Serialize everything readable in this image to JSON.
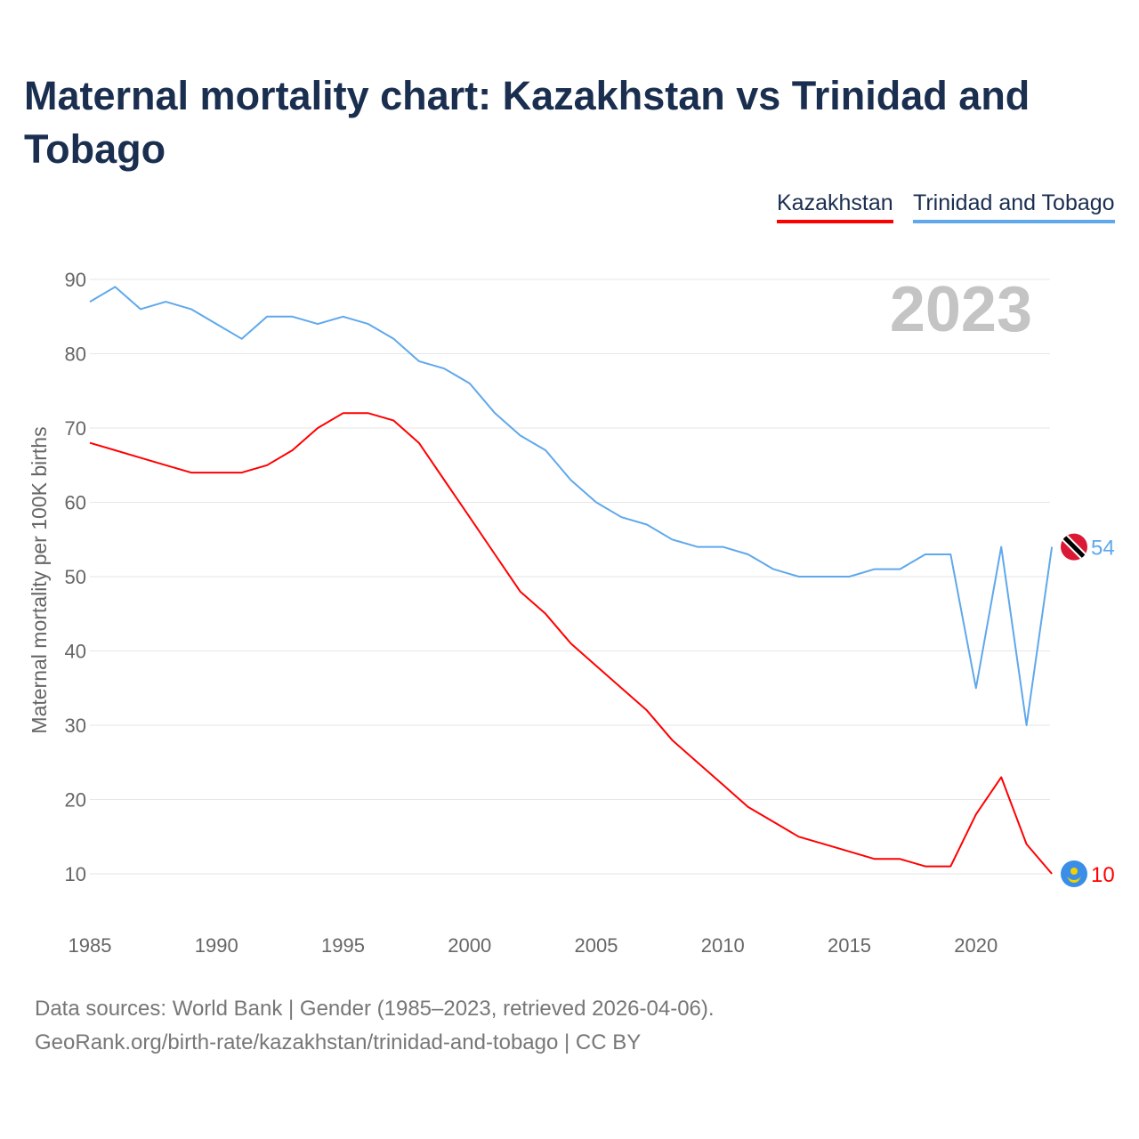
{
  "chart_data": {
    "type": "line",
    "title": "Maternal mortality chart: Kazakhstan vs Trinidad and Tobago",
    "ylabel": "Maternal mortality per 100K births",
    "xlabel": "",
    "ylim": [
      5,
      95
    ],
    "xlim": [
      1985,
      2023
    ],
    "yticks": [
      10,
      20,
      30,
      40,
      50,
      60,
      70,
      80,
      90
    ],
    "xticks": [
      1985,
      1990,
      1995,
      2000,
      2005,
      2010,
      2015,
      2020
    ],
    "grid": true,
    "legend_position": "top-right",
    "year_label": "2023",
    "x": [
      1985,
      1986,
      1987,
      1988,
      1989,
      1990,
      1991,
      1992,
      1993,
      1994,
      1995,
      1996,
      1997,
      1998,
      1999,
      2000,
      2001,
      2002,
      2003,
      2004,
      2005,
      2006,
      2007,
      2008,
      2009,
      2010,
      2011,
      2012,
      2013,
      2014,
      2015,
      2016,
      2017,
      2018,
      2019,
      2020,
      2021,
      2022,
      2023
    ],
    "series": [
      {
        "name": "Kazakhstan",
        "color": "#ff0000",
        "end_label": "10",
        "values": [
          68,
          67,
          66,
          65,
          64,
          64,
          64,
          65,
          67,
          70,
          72,
          72,
          71,
          68,
          63,
          58,
          53,
          48,
          45,
          41,
          38,
          35,
          32,
          28,
          25,
          22,
          19,
          17,
          15,
          14,
          13,
          12,
          12,
          11,
          11,
          18,
          23,
          14,
          10
        ]
      },
      {
        "name": "Trinidad and Tobago",
        "color": "#5fa8ec",
        "end_label": "54",
        "values": [
          87,
          89,
          86,
          87,
          86,
          84,
          82,
          85,
          85,
          84,
          85,
          84,
          82,
          79,
          78,
          76,
          72,
          69,
          67,
          63,
          60,
          58,
          57,
          55,
          54,
          54,
          53,
          51,
          50,
          50,
          50,
          51,
          51,
          53,
          53,
          35,
          54,
          30,
          54
        ]
      }
    ]
  },
  "footer": {
    "line1": "Data sources: World Bank | Gender (1985–2023, retrieved 2026-04-06).",
    "line2": "GeoRank.org/birth-rate/kazakhstan/trinidad-and-tobago | CC BY"
  }
}
